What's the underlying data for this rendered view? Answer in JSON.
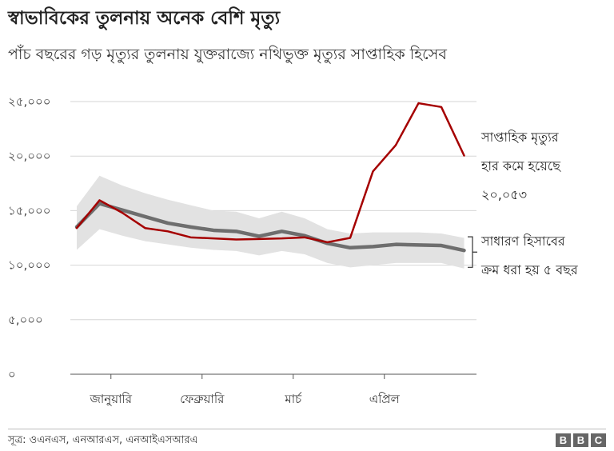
{
  "title": "স্বাভাবিকের তুলনায় অনেক বেশি মৃত্যু",
  "subtitle": "পাঁচ বছরের গড় মৃত্যুর তুলনায় যুক্তরাজ্যে নথিভুক্ত মৃত্যুর সাপ্তাহিক হিসেব",
  "source": "সূত্র: ওএনএস, এনআরএস, এনআইএসআরএ",
  "logo": [
    "B",
    "B",
    "C"
  ],
  "chart_data": {
    "type": "line",
    "ylim": [
      0,
      25000
    ],
    "yticks": [
      0,
      5000,
      10000,
      15000,
      20000,
      25000
    ],
    "ytick_labels": [
      "০",
      "৫,০০০",
      "১০,০০০",
      "১৫,০০০",
      "২০,০০০",
      "২৫,০০০"
    ],
    "x_months": [
      "জানুয়ারি",
      "ফেব্রুয়ারি",
      "মার্চ",
      "এপ্রিল"
    ],
    "x_month_positions": [
      2.5,
      6.5,
      10.5,
      14.5
    ],
    "x_weeks": [
      1,
      2,
      3,
      4,
      5,
      6,
      7,
      8,
      9,
      10,
      11,
      12,
      13,
      14,
      15,
      16,
      17,
      18
    ],
    "series": [
      {
        "name": "সাপ্তাহিক মৃত্যু",
        "color": "#a50000",
        "values": [
          13400,
          15950,
          14800,
          13400,
          13100,
          12550,
          12450,
          12350,
          12400,
          12450,
          12550,
          12100,
          12500,
          18600,
          21000,
          24850,
          24500,
          20053
        ]
      },
      {
        "name": "গড়",
        "color": "#6e6e6e",
        "values": [
          13500,
          15650,
          15050,
          14450,
          13850,
          13500,
          13200,
          13100,
          12650,
          13100,
          12700,
          12000,
          11600,
          11700,
          11900,
          11850,
          11800,
          11350
        ]
      }
    ],
    "range_band": {
      "color": "#e2e2e2",
      "upper": [
        15400,
        18200,
        17300,
        16600,
        16000,
        15500,
        15000,
        14900,
        14300,
        14900,
        14300,
        13300,
        12900,
        13000,
        13000,
        13000,
        12900,
        12500
      ],
      "lower": [
        11400,
        13300,
        12700,
        12200,
        11900,
        11600,
        11400,
        11300,
        10900,
        11300,
        11000,
        10200,
        9800,
        10000,
        10200,
        10200,
        10200,
        9700
      ]
    },
    "annotations": {
      "weekly": [
        "সাপ্তাহিক মৃত্যুর",
        "হার কমে হয়েছে",
        "২০,০৫৩"
      ],
      "range": [
        "সাধারণ হিসাবের",
        "ক্রম ধরা হয় ৫ বছর"
      ]
    }
  }
}
